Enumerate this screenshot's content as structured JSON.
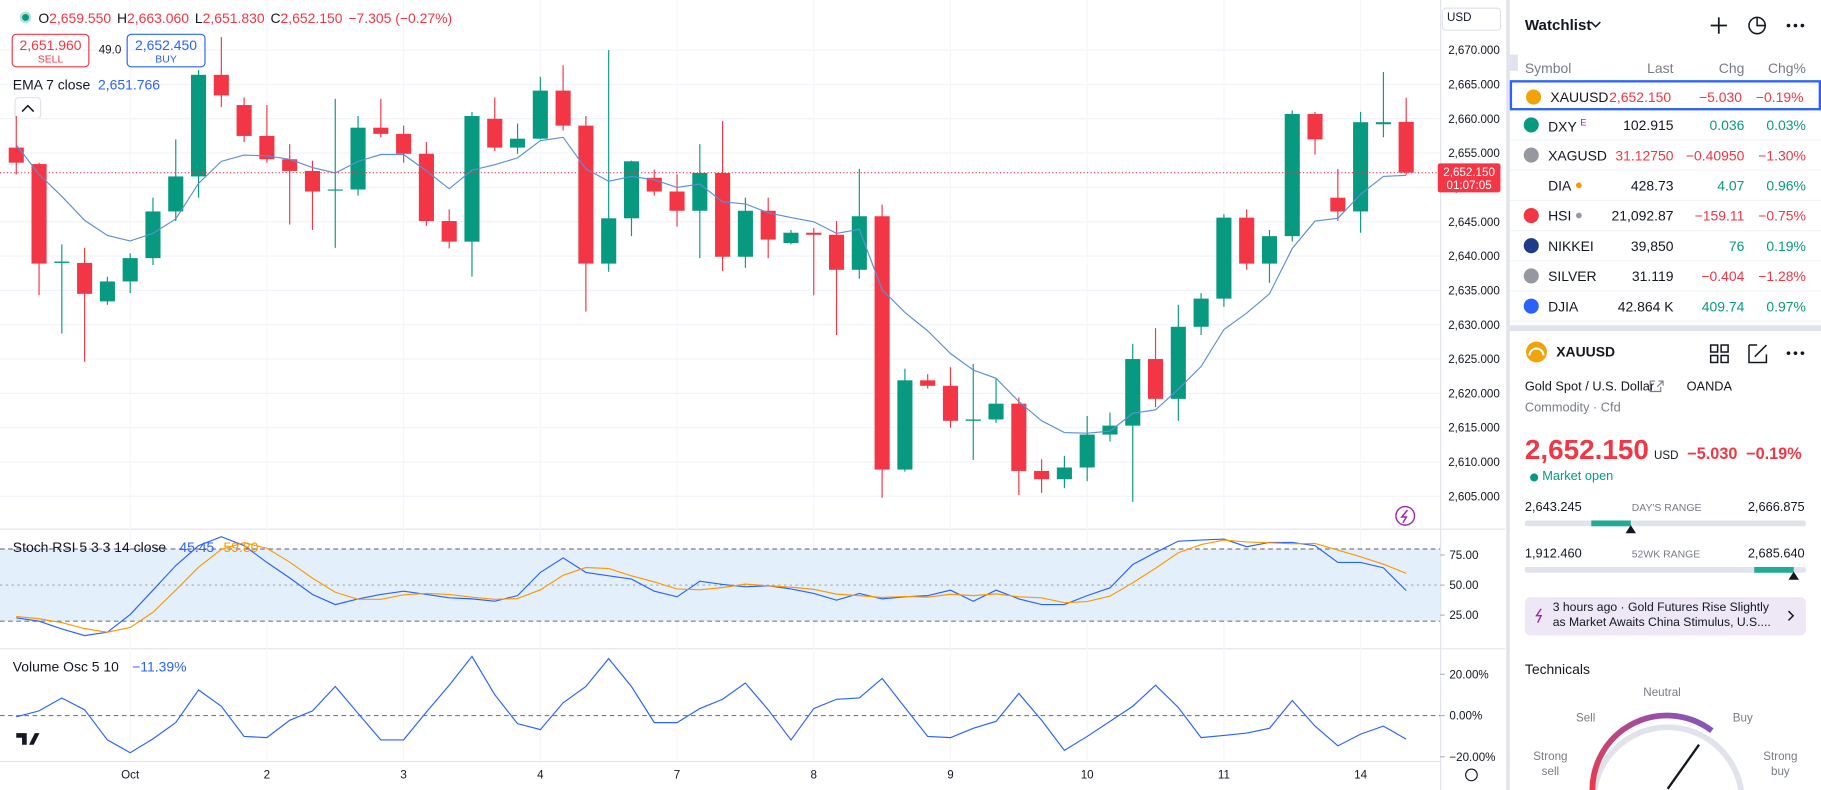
{
  "header": {
    "ohlc": [
      {
        "key": "O",
        "value": "2,659.550"
      },
      {
        "key": "H",
        "value": "2,663.060"
      },
      {
        "key": "L",
        "value": "2,651.830"
      },
      {
        "key": "C",
        "value": "2,652.150"
      }
    ],
    "change": "−7.305 (−0.27%)",
    "sell_price": "2,651.960",
    "sell": "SELL",
    "spread": "49.0",
    "buy_price": "2,652.450",
    "buy": "BUY",
    "currency": "USD",
    "ema_label": "EMA 7 close",
    "ema_value": "2,651.766"
  },
  "chart_data": [
    {
      "type": "candlestick",
      "up_color": "#089981",
      "down_color": "#f23645",
      "grid": true,
      "x": [
        null,
        null,
        null,
        null,
        null,
        "Oct",
        null,
        null,
        null,
        null,
        null,
        "2",
        null,
        null,
        null,
        null,
        null,
        "3",
        null,
        null,
        null,
        null,
        null,
        "4",
        null,
        null,
        null,
        null,
        null,
        "7",
        null,
        null,
        null,
        null,
        null,
        "8",
        null,
        null,
        null,
        null,
        null,
        "9",
        null,
        null,
        null,
        null,
        null,
        "10",
        null,
        null,
        null,
        null,
        null,
        "11",
        null,
        null,
        null,
        null,
        null,
        "14",
        null,
        null
      ],
      "open": [
        2655.8,
        2653.4,
        2639.0,
        2639.0,
        2633.4,
        2636.3,
        2639.7,
        2646.5,
        2651.6,
        2666.4,
        2662.0,
        2657.5,
        2654.1,
        2652.4,
        2649.7,
        2649.7,
        2658.7,
        2657.8,
        2654.9,
        2645.1,
        2642.1,
        2660.0,
        2655.8,
        2657.1,
        2664.1,
        2659.0,
        2638.9,
        2645.5,
        2651.4,
        2649.4,
        2646.6,
        2652.1,
        2639.9,
        2646.6,
        2641.9,
        2643.4,
        2643.1,
        2638.0,
        2645.8,
        2608.9,
        2621.9,
        2621.1,
        2616.0,
        2616.2,
        2618.5,
        2608.7,
        2607.5,
        2609.2,
        2614.0,
        2615.3,
        2625.0,
        2619.2,
        2629.7,
        2633.8,
        2645.6,
        2638.9,
        2642.9,
        2660.7,
        2648.5,
        2646.5,
        2659.2,
        2659.55
      ],
      "high": [
        2660.4,
        2653.6,
        2641.7,
        2641.2,
        2637.0,
        2640.4,
        2648.5,
        2657.0,
        2667.1,
        2671.9,
        2663.1,
        2662.0,
        2656.3,
        2653.9,
        2662.9,
        2660.4,
        2662.9,
        2659.0,
        2656.6,
        2646.8,
        2661.0,
        2663.1,
        2659.3,
        2666.1,
        2667.8,
        2660.4,
        2670.0,
        2653.9,
        2652.6,
        2651.9,
        2656.3,
        2659.7,
        2648.5,
        2648.5,
        2643.8,
        2644.1,
        2645.1,
        2652.7,
        2647.5,
        2623.6,
        2622.8,
        2623.8,
        2624.3,
        2622.1,
        2619.4,
        2610.4,
        2610.9,
        2616.7,
        2617.2,
        2627.2,
        2629.5,
        2632.9,
        2634.6,
        2646.1,
        2646.8,
        2643.8,
        2661.2,
        2661.0,
        2652.7,
        2661.0,
        2666.8,
        2663.06
      ],
      "low": [
        2651.9,
        2634.3,
        2628.7,
        2624.6,
        2632.9,
        2634.6,
        2638.7,
        2645.1,
        2648.5,
        2661.7,
        2656.6,
        2653.6,
        2644.6,
        2643.8,
        2641.2,
        2648.8,
        2657.3,
        2653.6,
        2644.4,
        2641.1,
        2637.0,
        2655.3,
        2654.9,
        2657.0,
        2658.3,
        2631.9,
        2637.7,
        2642.9,
        2648.8,
        2644.3,
        2639.7,
        2637.8,
        2638.3,
        2639.7,
        2641.7,
        2634.3,
        2628.5,
        2636.7,
        2604.8,
        2608.6,
        2620.7,
        2615.0,
        2610.3,
        2615.7,
        2605.2,
        2605.5,
        2606.2,
        2607.2,
        2613.0,
        2604.2,
        2618.0,
        2616.0,
        2628.5,
        2632.6,
        2638.0,
        2636.1,
        2642.1,
        2654.8,
        2645.1,
        2643.4,
        2657.3,
        2651.83
      ],
      "close": [
        2653.6,
        2638.9,
        2639.2,
        2634.5,
        2636.3,
        2639.7,
        2646.5,
        2651.6,
        2666.4,
        2663.4,
        2657.5,
        2654.1,
        2652.4,
        2649.4,
        2649.7,
        2658.7,
        2657.8,
        2654.9,
        2645.1,
        2642.1,
        2660.4,
        2655.8,
        2657.1,
        2664.1,
        2659.0,
        2638.9,
        2645.5,
        2653.8,
        2649.4,
        2646.6,
        2652.1,
        2639.9,
        2646.6,
        2642.4,
        2643.4,
        2643.1,
        2638.0,
        2645.8,
        2608.9,
        2621.9,
        2621.1,
        2616.0,
        2616.2,
        2618.5,
        2608.7,
        2607.5,
        2609.2,
        2614.0,
        2615.3,
        2625.0,
        2619.2,
        2629.7,
        2633.8,
        2645.6,
        2638.9,
        2642.9,
        2660.7,
        2657.0,
        2646.5,
        2659.5,
        2659.5,
        2652.15
      ],
      "ema": {
        "color": "#5b8fd6",
        "values": [
          2656.2,
          2651.9,
          2648.7,
          2645.2,
          2643.0,
          2642.2,
          2643.3,
          2645.4,
          2650.6,
          2653.8,
          2654.7,
          2654.6,
          2654.1,
          2652.9,
          2652.1,
          2653.8,
          2654.8,
          2654.8,
          2652.4,
          2649.8,
          2652.5,
          2653.3,
          2654.3,
          2656.8,
          2657.3,
          2652.7,
          2650.9,
          2651.6,
          2651.1,
          2650.0,
          2650.5,
          2647.9,
          2647.6,
          2646.3,
          2645.6,
          2645.0,
          2643.3,
          2643.9,
          2635.1,
          2631.8,
          2629.1,
          2625.8,
          2623.4,
          2622.2,
          2618.8,
          2616.0,
          2614.3,
          2614.2,
          2614.5,
          2617.1,
          2617.6,
          2620.6,
          2623.9,
          2629.3,
          2631.7,
          2634.5,
          2641.1,
          2645.1,
          2645.5,
          2649.0,
          2651.6,
          2651.766
        ]
      },
      "ylim": [
        2600.3,
        2677.3
      ],
      "yticks": [
        {
          "value": 2605,
          "label": "2,605.000"
        },
        {
          "value": 2610,
          "label": "2,610.000"
        },
        {
          "value": 2615,
          "label": "2,615.000"
        },
        {
          "value": 2620,
          "label": "2,620.000"
        },
        {
          "value": 2625,
          "label": "2,625.000"
        },
        {
          "value": 2630,
          "label": "2,630.000"
        },
        {
          "value": 2635,
          "label": "2,635.000"
        },
        {
          "value": 2640,
          "label": "2,640.000"
        },
        {
          "value": 2645,
          "label": "2,645.000"
        },
        {
          "value": 2650,
          "label": "2,650.000"
        },
        {
          "value": 2655,
          "label": "2,655.000"
        },
        {
          "value": 2660,
          "label": "2,660.000"
        },
        {
          "value": 2665,
          "label": "2,665.000"
        },
        {
          "value": 2670,
          "label": "2,670.000"
        }
      ],
      "last_price": {
        "value": 2652.15,
        "label": "2,652.150"
      },
      "countdown": "01:07:05"
    },
    {
      "type": "line",
      "title": "Stoch RSI 5 3 3 14 close",
      "ylim": [
        -2.5,
        96
      ],
      "band": [
        20,
        80
      ],
      "band_color": "#e3f0fb",
      "midline": 50,
      "yticks": [
        {
          "value": 25,
          "label": "25.00"
        },
        {
          "value": 50,
          "label": "50.00"
        },
        {
          "value": 75,
          "label": "75.00"
        }
      ],
      "series": [
        {
          "color": "#2962ff",
          "legend": "45.45",
          "values": [
            22.8,
            20.0,
            13.5,
            8.0,
            10.8,
            25.5,
            45.8,
            66.2,
            82.8,
            90.2,
            82.8,
            68.9,
            56.0,
            42.2,
            33.8,
            38.5,
            42.2,
            44.9,
            42.2,
            39.4,
            38.5,
            36.6,
            41.2,
            60.6,
            72.6,
            60.6,
            57.8,
            55.1,
            44.9,
            40.3,
            53.2,
            50.5,
            48.6,
            49.5,
            46.8,
            43.1,
            37.5,
            43.1,
            38.5,
            40.3,
            41.2,
            45.8,
            36.6,
            45.8,
            38.5,
            33.8,
            33.8,
            41.2,
            47.7,
            67.1,
            77.2,
            86.5,
            87.4,
            88.3,
            81.9,
            85.5,
            85.5,
            82.8,
            68.9,
            68.9,
            64.3,
            45.45
          ]
        },
        {
          "color": "#ff9800",
          "legend": "59.80",
          "values": [
            24,
            22,
            18.8,
            13.8,
            10.8,
            14.8,
            27.4,
            45.8,
            64.9,
            79.7,
            85.3,
            80.6,
            69.2,
            55.7,
            44.0,
            38.2,
            38.2,
            41.9,
            43.1,
            42.2,
            40.0,
            38.2,
            38.8,
            46.1,
            58.1,
            64.6,
            63.7,
            57.8,
            52.6,
            46.8,
            46.1,
            48.0,
            50.8,
            49.5,
            48.3,
            46.5,
            42.5,
            41.2,
            39.7,
            40.6,
            40.0,
            42.4,
            41.2,
            42.7,
            40.3,
            39.4,
            35.4,
            36.3,
            40.9,
            52.0,
            64.0,
            76.9,
            83.7,
            87.4,
            85.9,
            85.2,
            84.3,
            84.6,
            79.1,
            73.5,
            67.4,
            59.8
          ]
        }
      ]
    },
    {
      "type": "line",
      "title": "Volume Osc 5 10",
      "ylim": [
        -22,
        31.5
      ],
      "reference_line": 0,
      "yticks": [
        {
          "value": -20,
          "label": "−20.00%"
        },
        {
          "value": 0,
          "label": "0.00%"
        },
        {
          "value": 20,
          "label": "20.00%"
        }
      ],
      "series": [
        {
          "color": "#2962ff",
          "legend": "−11.39%",
          "values": [
            -0.6,
            2.3,
            8.5,
            2.8,
            -11.8,
            -18.0,
            -11.3,
            -3.4,
            12.4,
            4.5,
            -10.1,
            -10.7,
            -2.3,
            2.3,
            14.1,
            1.1,
            -11.8,
            -11.8,
            1.7,
            14.7,
            28.7,
            10.1,
            -3.9,
            -6.8,
            6.2,
            14.1,
            27.6,
            14.1,
            -3.4,
            -3.4,
            3.4,
            7.9,
            15.8,
            2.8,
            -11.8,
            3.4,
            7.9,
            8.5,
            18.0,
            3.9,
            -10.1,
            -10.7,
            -6.2,
            -2.8,
            10.7,
            -2.3,
            -16.9,
            -10.1,
            -2.8,
            4.5,
            14.7,
            3.9,
            -10.7,
            -9.6,
            -8.5,
            -6.2,
            7.3,
            -5.1,
            -14.7,
            -9.0,
            -5.1,
            -11.39
          ]
        }
      ]
    }
  ],
  "watchlist": {
    "title": "Watchlist",
    "columns": [
      "Symbol",
      "Last",
      "Chg",
      "Chg%"
    ],
    "rows": [
      {
        "symbol": "XAUUSD",
        "last": "2,652.150",
        "change": "−5.030",
        "change_pct": "−0.19%",
        "icon_color": "#f0a30a",
        "last_color": "#f23645",
        "change_color": "#f23645"
      },
      {
        "symbol": "DXY",
        "badge": "E",
        "last": "102.915",
        "change": "0.036",
        "change_pct": "0.03%",
        "icon_color": "#089981",
        "last_color": "#131722",
        "change_color": "#089981"
      },
      {
        "symbol": "XAGUSD",
        "last": "31.12750",
        "change": "−0.40950",
        "change_pct": "−1.30%",
        "icon_color": "#9598a1",
        "last_color": "#f23645",
        "change_color": "#f23645"
      },
      {
        "symbol": "DIA",
        "dot_color": "#ff9800",
        "last": "428.73",
        "change": "4.07",
        "change_pct": "0.96%",
        "icon_color": "#ffffff",
        "last_color": "#131722",
        "change_color": "#089981"
      },
      {
        "symbol": "HSI",
        "dot_color": "#9598a1",
        "last": "21,092.87",
        "change": "−159.11",
        "change_pct": "−0.75%",
        "icon_color": "#f23645",
        "last_color": "#131722",
        "change_color": "#f23645"
      },
      {
        "symbol": "NIKKEI",
        "last": "39,850",
        "change": "76",
        "change_pct": "0.19%",
        "icon_color": "#1e3a8a",
        "last_color": "#131722",
        "change_color": "#089981"
      },
      {
        "symbol": "SILVER",
        "last": "31.119",
        "change": "−0.404",
        "change_pct": "−1.28%",
        "icon_color": "#9598a1",
        "last_color": "#131722",
        "change_color": "#f23645"
      },
      {
        "symbol": "DJIA",
        "last": "42.864 K",
        "change": "409.74",
        "change_pct": "0.97%",
        "icon_color": "#2962ff",
        "last_color": "#131722",
        "change_color": "#089981"
      }
    ]
  },
  "details": {
    "symbol": "XAUUSD",
    "name": "Gold Spot / U.S. Dollar",
    "exchange": "OANDA",
    "category": "Commodity",
    "kind": "Cfd",
    "price": {
      "value": 2652.15,
      "label": "2,652.150"
    },
    "currency": "USD",
    "change": "−5.030",
    "change_pct": "−0.19%",
    "status": "Market open",
    "day_range": {
      "label": "DAY'S RANGE",
      "low": {
        "value": 2643.245,
        "label": "2,643.245"
      },
      "high": {
        "value": 2666.875,
        "label": "2,666.875"
      }
    },
    "year_range": {
      "label": "52WK RANGE",
      "low": {
        "value": 1912.46,
        "label": "1,912.460"
      },
      "high": {
        "value": 2685.64,
        "label": "2,685.640"
      }
    },
    "news": {
      "time": "3 hours ago",
      "headline": "Gold Futures Rise Slightly as Market Awaits China Stimulus, U.S...."
    },
    "technicals": {
      "title": "Technicals",
      "neutral": "Neutral",
      "sell": "Sell",
      "buy": "Buy",
      "strong_sell": "Strong sell",
      "strong_buy": "Strong buy"
    }
  }
}
